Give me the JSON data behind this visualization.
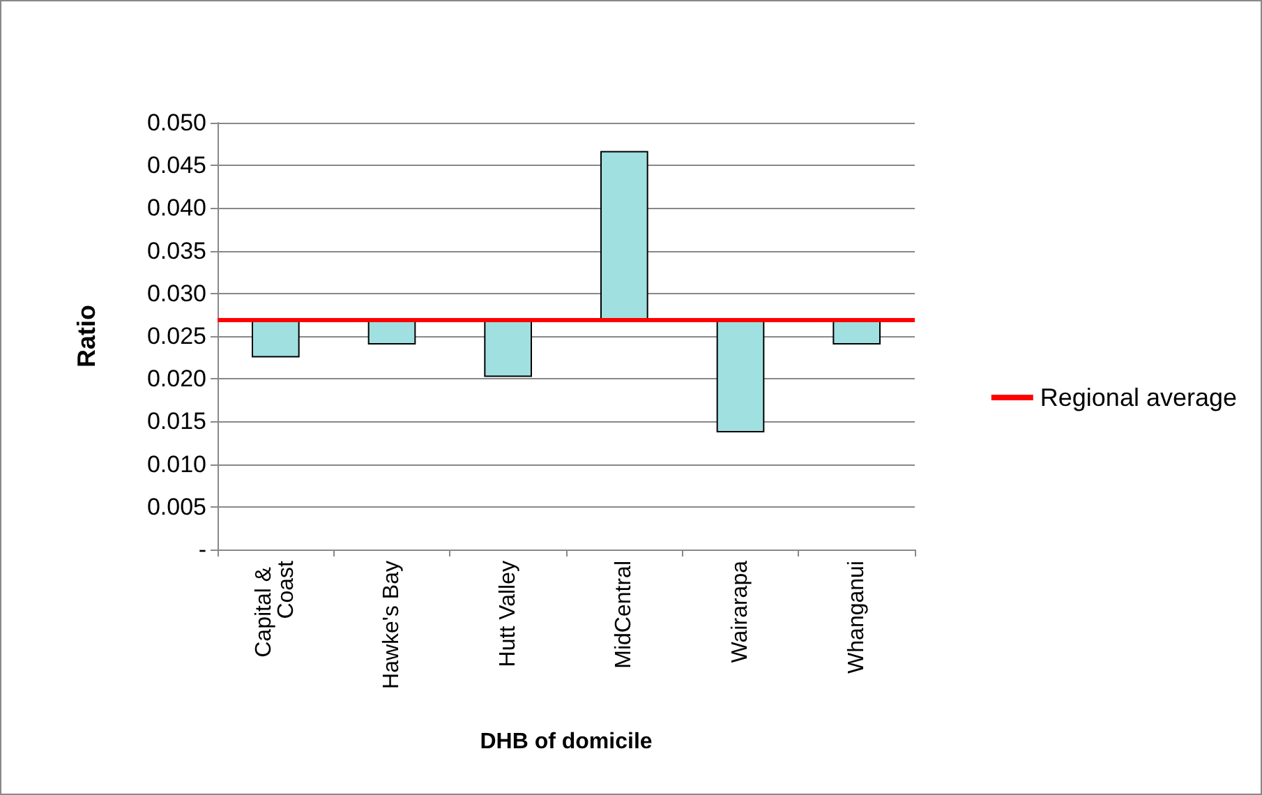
{
  "chart_data": {
    "type": "bar",
    "xlabel": "DHB of domicile",
    "ylabel": "Ratio",
    "categories": [
      "Capital & Coast",
      "Hawke's Bay",
      "Hutt Valley",
      "MidCentral",
      "Wairarapa",
      "Whanganui"
    ],
    "base": [
      0.027,
      0.027,
      0.027,
      0.027,
      0.027,
      0.027
    ],
    "values": [
      -0.0044,
      -0.0029,
      -0.0067,
      0.0196,
      -0.0132,
      -0.0029
    ],
    "color": "#a0e0e0",
    "ylim": [
      0,
      0.05
    ],
    "yticks": [
      {
        "value": 0,
        "label": "-"
      },
      {
        "value": 0.005,
        "label": "0.005"
      },
      {
        "value": 0.01,
        "label": "0.010"
      },
      {
        "value": 0.015,
        "label": "0.015"
      },
      {
        "value": 0.02,
        "label": "0.020"
      },
      {
        "value": 0.025,
        "label": "0.025"
      },
      {
        "value": 0.03,
        "label": "0.030"
      },
      {
        "value": 0.035,
        "label": "0.035"
      },
      {
        "value": 0.04,
        "label": "0.040"
      },
      {
        "value": 0.045,
        "label": "0.045"
      },
      {
        "value": 0.05,
        "label": "0.050"
      }
    ],
    "ref_lines": [
      {
        "axis": "y",
        "value": 0.027,
        "label": "Regional average",
        "color": "#ff0000"
      }
    ],
    "grid": "y",
    "legend": "right"
  }
}
